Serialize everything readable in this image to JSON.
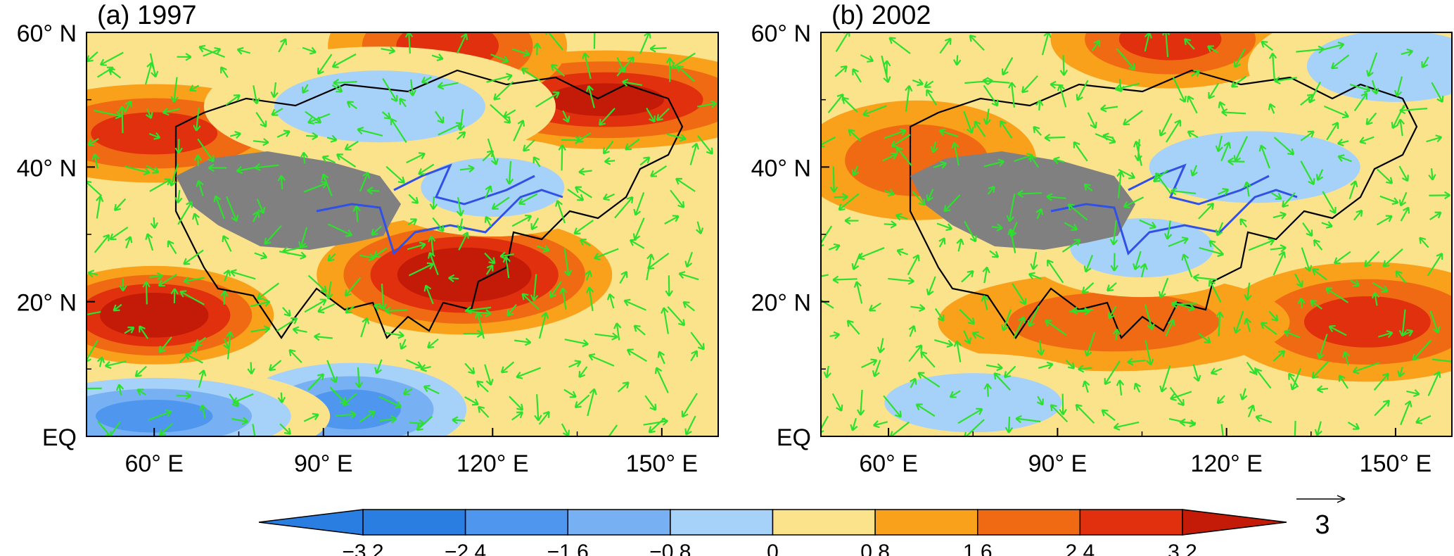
{
  "colors": {
    "levels": [
      "#2a7de1",
      "#4f97ee",
      "#78b1f3",
      "#a6d1f8",
      "#fbe38c",
      "#f9a11a",
      "#f06a13",
      "#e0300d",
      "#c41a08"
    ],
    "vector": "#2ee02e",
    "tibet": "#808080",
    "river": "#3050e6",
    "coast": "#000000"
  },
  "chart_data": [
    {
      "type": "heatmap",
      "panel_label": "(a) 1997",
      "x_ticks": [
        "60° E",
        "90° E",
        "120° E",
        "150° E"
      ],
      "y_ticks": [
        "60° N",
        "40° N",
        "20° N",
        "EQ"
      ],
      "xlim": [
        48,
        160
      ],
      "ylim": [
        0,
        60
      ],
      "fields": [
        {
          "lon": 60,
          "lat": 18,
          "value": 3.4
        },
        {
          "lon": 115,
          "lat": 24,
          "value": 3.3
        },
        {
          "lon": 140,
          "lat": 50,
          "value": 2.6
        },
        {
          "lon": 112,
          "lat": 58,
          "value": 1.7
        },
        {
          "lon": 60,
          "lat": 45,
          "value": 1.8
        },
        {
          "lon": 100,
          "lat": 49,
          "value": -1.3
        },
        {
          "lon": 120,
          "lat": 37,
          "value": -1.4
        },
        {
          "lon": 95,
          "lat": 4,
          "value": -3.2
        },
        {
          "lon": 60,
          "lat": 3,
          "value": -3.0
        }
      ]
    },
    {
      "type": "heatmap",
      "panel_label": "(b) 2002",
      "x_ticks": [
        "60° E",
        "90° E",
        "120° E",
        "150° E"
      ],
      "y_ticks": [
        "60° N",
        "40° N",
        "20° N",
        "EQ"
      ],
      "xlim": [
        48,
        160
      ],
      "ylim": [
        0,
        60
      ],
      "fields": [
        {
          "lon": 110,
          "lat": 59,
          "value": 1.9
        },
        {
          "lon": 145,
          "lat": 17,
          "value": 2.3
        },
        {
          "lon": 100,
          "lat": 17,
          "value": 1.6
        },
        {
          "lon": 65,
          "lat": 41,
          "value": 1.3
        },
        {
          "lon": 75,
          "lat": 5,
          "value": -1.2
        },
        {
          "lon": 125,
          "lat": 40,
          "value": -1.4
        },
        {
          "lon": 105,
          "lat": 28,
          "value": -0.9
        },
        {
          "lon": 150,
          "lat": 55,
          "value": -1.0
        }
      ]
    }
  ],
  "colorbar": {
    "ticks": [
      "−3.2",
      "−2.4",
      "−1.6",
      "−0.8",
      "0",
      "0.8",
      "1.6",
      "2.4",
      "3.2"
    ]
  },
  "reference_vector": {
    "label": "3"
  }
}
